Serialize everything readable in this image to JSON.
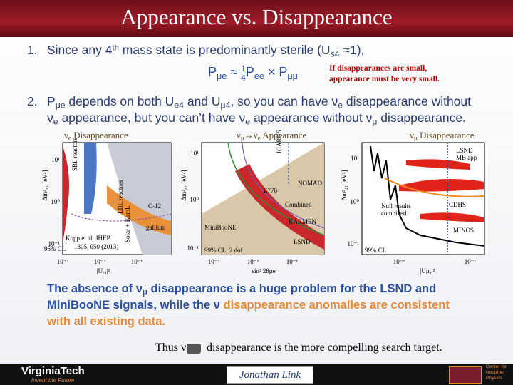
{
  "header": {
    "title": "Appearance vs. Disappearance"
  },
  "items": [
    {
      "number": "1.",
      "lines": [
        [
          {
            "text": "Since any 4"
          },
          {
            "text": "th",
            "sup": true
          },
          {
            "text": " mass state is predominantly sterile  (U"
          },
          {
            "text": "s4",
            "sub": true
          },
          {
            "text": " ≈1),"
          }
        ]
      ]
    },
    {
      "number": "2.",
      "lines": [
        [
          {
            "text": "P"
          },
          {
            "text": "μe",
            "sub": true
          },
          {
            "text": " depends on  both U"
          },
          {
            "text": "e4",
            "sub": true
          },
          {
            "text": " and U"
          },
          {
            "text": "μ4",
            "sub": true
          },
          {
            "text": ", so you can have ν"
          },
          {
            "text": "e",
            "sub": true
          },
          {
            "text": "  disappearance without"
          }
        ],
        [
          {
            "text": "ν"
          },
          {
            "text": "e",
            "sub": true
          },
          {
            "text": " appearance, but you can’t have ν"
          },
          {
            "text": "e",
            "sub": true
          },
          {
            "text": "  appearance without ν"
          },
          {
            "text": "μ",
            "sub": true
          },
          {
            "text": " disappearance."
          }
        ]
      ]
    }
  ],
  "formula": {
    "lhs": [
      {
        "text": "P"
      },
      {
        "text": "μe",
        "sub": true
      },
      {
        "text": "  ≈  "
      }
    ],
    "numerator": "1",
    "denominator": "4",
    "rhs": [
      {
        "text": "P"
      },
      {
        "text": "ee",
        "sub": true
      },
      {
        "text": "  ×  P"
      },
      {
        "text": "μμ",
        "sub": true
      }
    ]
  },
  "note": [
    "If disappearances are small,",
    "appearance must be very small."
  ],
  "plots": [
    {
      "title": [
        {
          "text": "ν"
        },
        {
          "text": "e",
          "sub": true
        },
        {
          "text": " Disappearance"
        }
      ],
      "ylabel": "Δm²₄₁ [eV²]",
      "yticks": [
        "10¹",
        "10⁰",
        "10⁻¹"
      ],
      "xticks": [
        "10⁻³",
        "10⁻²",
        "10⁻¹"
      ],
      "xlabel": "|Uₑ₄|²",
      "texts": [
        "95% CL",
        "Kopp et al. JHEP",
        "1305, 050 (2013)",
        "C-12",
        "gallium",
        "SBL reactors",
        "LBL reactors",
        "Solar + KamL"
      ]
    },
    {
      "title": [
        {
          "text": "ν"
        },
        {
          "text": "μ",
          "sub": true
        },
        {
          "text": "→ν"
        },
        {
          "text": "e",
          "sub": true
        },
        {
          "text": " Appearance"
        }
      ],
      "ylabel": "Δm²₄₁ [eV²]",
      "yticks": [
        "10¹",
        "10⁰",
        "10⁻¹"
      ],
      "xticks": [
        "10⁻³",
        "10⁻²",
        "10⁻¹"
      ],
      "xlabel": "sin² 2θμe",
      "texts": [
        "99% CL, 2 dof",
        "MiniBooNE",
        "LSND",
        "KARMEN",
        "NOMAD",
        "Combined",
        "E776",
        "ICARUS"
      ]
    },
    {
      "title": [
        {
          "text": "ν"
        },
        {
          "text": "μ",
          "sub": true
        },
        {
          "text": " Disappearance"
        }
      ],
      "ylabel": "Δm²₄₁ [eV²]",
      "yticks": [
        "10¹",
        "10⁰",
        "10⁻¹"
      ],
      "xticks": [
        "10⁻²",
        "10⁻¹"
      ],
      "xlabel": "|Uμ₄|²",
      "texts": [
        "99% CL",
        "Null results",
        "combined",
        "CDHS",
        "MINOS",
        "LSND",
        "MB app"
      ]
    }
  ],
  "conclusion": {
    "lines": [
      [
        {
          "text": "The absence of ν"
        },
        {
          "text": "μ",
          "sub": true
        },
        {
          "text": " disappearance is a huge problem for the LSND and"
        }
      ],
      [
        {
          "text": "MiniBooNE signals, while the ν"
        },
        {
          "text": "   disappearance anomalies are consistent",
          "highlight": true
        }
      ],
      [
        {
          "text": "with all existing data.",
          "highlight": true
        }
      ]
    ]
  },
  "closing": {
    "before": "Thus ν",
    "after": "disappearance is the more compelling search target."
  },
  "footer": {
    "university": "VirginiaTech",
    "motto": "Invent the Future",
    "author": "Jonathan Link",
    "center": [
      "Center for",
      "Neutrino",
      "Physics"
    ]
  }
}
